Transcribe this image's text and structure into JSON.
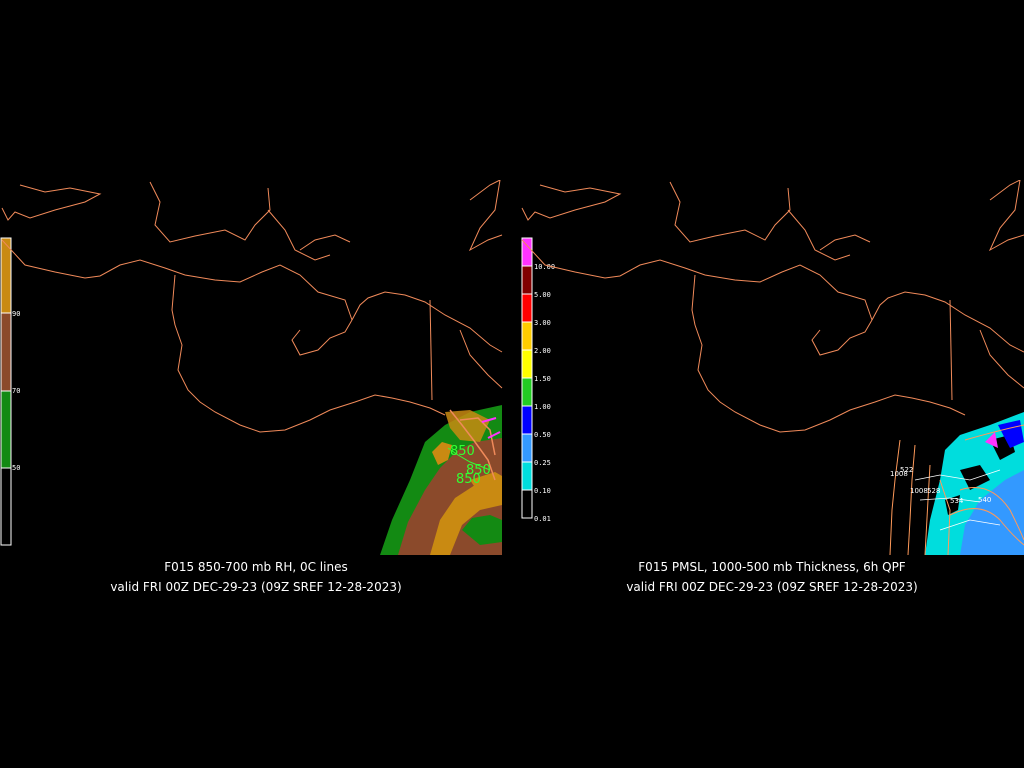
{
  "left_map": {
    "title": "F015 850-700 mb RH, 0C lines",
    "valid": "valid FRI 00Z DEC-29-23 (09Z SREF 12-28-2023)",
    "colorbar": [
      {
        "label": "",
        "color": "#c98a12"
      },
      {
        "label": "90",
        "color": "#8b4a2b"
      },
      {
        "label": "70",
        "color": "#138a13"
      },
      {
        "label": "50",
        "color": "#000000"
      }
    ],
    "contour_labels": [
      "850",
      "850",
      "850"
    ],
    "colors": {
      "coast": "#f08a5a",
      "contour": "#33ff33",
      "magenta": "#ff33ff"
    }
  },
  "right_map": {
    "title": "F015 PMSL, 1000-500 mb Thickness, 6h QPF",
    "valid": "valid FRI 00Z DEC-29-23 (09Z SREF 12-28-2023)",
    "colorbar": [
      {
        "label": "10.00",
        "color": "#ff33ff"
      },
      {
        "label": "5.00",
        "color": "#800000"
      },
      {
        "label": "3.00",
        "color": "#ff0000"
      },
      {
        "label": "2.00",
        "color": "#ffcc00"
      },
      {
        "label": "1.50",
        "color": "#ffff00"
      },
      {
        "label": "1.00",
        "color": "#22cc22"
      },
      {
        "label": "0.50",
        "color": "#0000ff"
      },
      {
        "label": "0.25",
        "color": "#3399ff"
      },
      {
        "label": "0.10",
        "color": "#00dddd"
      },
      {
        "label": "0.01",
        "color": "#000000"
      }
    ],
    "contour_labels": [
      "522",
      "1008",
      "1008",
      "528",
      "534",
      "540"
    ],
    "colors": {
      "coast": "#f08a5a",
      "qpf": "#33dddd",
      "thickness": "#ff9a5a"
    }
  }
}
